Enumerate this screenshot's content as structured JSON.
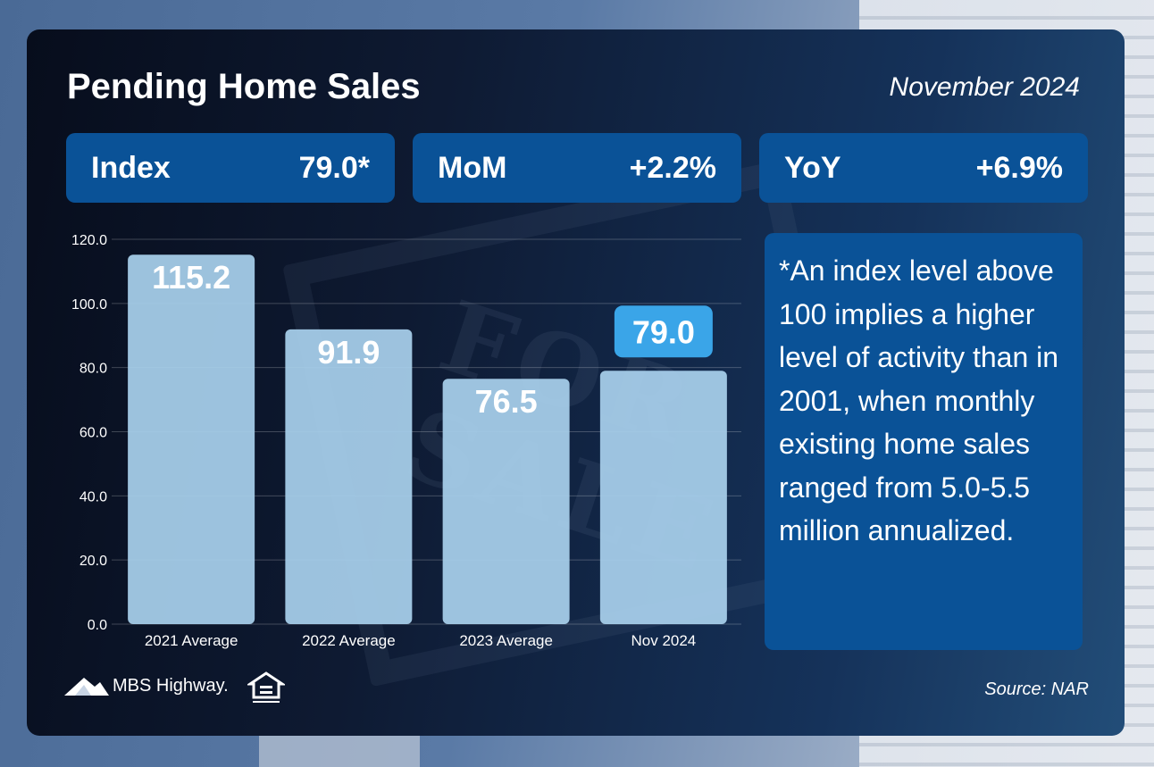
{
  "header": {
    "title": "Pending Home Sales",
    "date": "November 2024"
  },
  "stats": [
    {
      "label": "Index",
      "value": "79.0*"
    },
    {
      "label": "MoM",
      "value": "+2.2%"
    },
    {
      "label": "YoY",
      "value": "+6.9%"
    }
  ],
  "note": "*An index level above 100 implies a higher level of activity than in 2001, when monthly existing home sales ranged from 5.0-5.5 million annualized.",
  "footer": {
    "brand": "MBS Highway.",
    "source": "Source: NAR",
    "logo_icon": "mountain-logo-icon",
    "housing_icon": "equal-housing-opportunity-icon"
  },
  "colors": {
    "bar": "#a8d0ec",
    "highlight_label_bg": "#3aa5e8",
    "stat_box": "#0a5297"
  },
  "chart_data": {
    "type": "bar",
    "categories": [
      "2021 Average",
      "2022 Average",
      "2023 Average",
      "Nov 2024"
    ],
    "values": [
      115.2,
      91.9,
      76.5,
      79.0
    ],
    "data_labels": [
      "115.2",
      "91.9",
      "76.5",
      "79.0"
    ],
    "highlight_index": 3,
    "ylim": [
      0,
      120
    ],
    "yticks": [
      "0.0",
      "20.0",
      "40.0",
      "60.0",
      "80.0",
      "100.0",
      "120.0"
    ],
    "grid": true
  }
}
